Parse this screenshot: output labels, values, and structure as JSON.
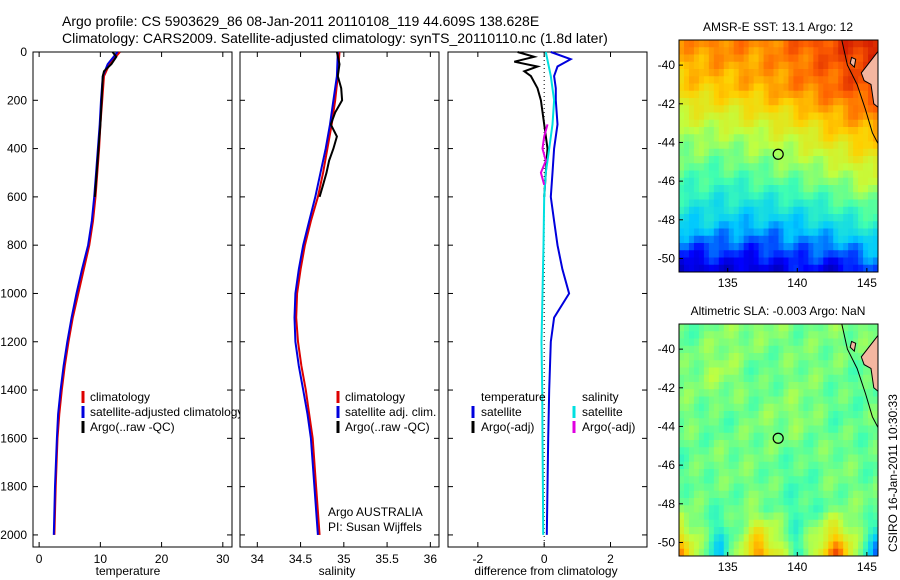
{
  "titles": {
    "line1": "Argo profile: CS 5903629_86 08-Jan-2011 20110108_119 44.609S 138.628E",
    "line2": "Climatology: CARS2009. Satellite-adjusted climatology: synTS_20110110.nc (1.8d later)"
  },
  "stamp": "CSIRO 16-Jan-2011 10:30:33",
  "colors": {
    "climatology": "#dd0000",
    "satellite": "#0000dd",
    "argo": "#000000",
    "satellite_sal": "#00e0e0",
    "argo_sal": "#e000e0"
  },
  "chart_data": [
    {
      "type": "line",
      "name": "temperature-profile",
      "xlabel": "temperature",
      "ylabel": "",
      "xlim": [
        -1,
        31.5
      ],
      "ylim": [
        2050,
        0
      ],
      "xticks": [
        0,
        10,
        20,
        30
      ],
      "xtick_labels": [
        "0",
        "10",
        "20",
        "30"
      ],
      "yticks": [
        0,
        200,
        400,
        600,
        800,
        1000,
        1200,
        1400,
        1600,
        1800,
        2000
      ],
      "ytick_labels": [
        "0",
        "200",
        "400",
        "600",
        "800",
        "1000",
        "1200",
        "1400",
        "1600",
        "1800",
        "2000"
      ],
      "legend": [
        "climatology",
        "satellite-adjusted climatology",
        "Argo(..raw -QC)"
      ],
      "series": [
        {
          "name": "climatology",
          "color": "#dd0000",
          "depth": [
            0,
            50,
            100,
            200,
            300,
            400,
            500,
            600,
            700,
            800,
            900,
            1000,
            1100,
            1200,
            1300,
            1400,
            1500,
            1600,
            1800,
            2000
          ],
          "values": [
            13.2,
            11.5,
            10.6,
            10.3,
            10.0,
            9.8,
            9.5,
            9.2,
            8.8,
            8.2,
            7.3,
            6.4,
            5.5,
            4.8,
            4.2,
            3.7,
            3.3,
            3.0,
            2.7,
            2.5
          ]
        },
        {
          "name": "satellite-adjusted climatology",
          "color": "#0000dd",
          "depth": [
            0,
            50,
            100,
            200,
            300,
            400,
            500,
            600,
            700,
            800,
            900,
            1000,
            1100,
            1200,
            1300,
            1400,
            1500,
            1600,
            1800,
            2000
          ],
          "values": [
            12.8,
            11.2,
            10.4,
            10.1,
            9.9,
            9.6,
            9.3,
            9.0,
            8.6,
            8.0,
            7.0,
            6.1,
            5.3,
            4.6,
            4.0,
            3.5,
            3.1,
            2.9,
            2.6,
            2.4
          ]
        },
        {
          "name": "Argo(..raw -QC)",
          "color": "#000000",
          "depth": [
            0,
            20,
            50,
            80,
            100,
            150,
            200,
            300,
            400,
            500,
            600
          ],
          "values": [
            12.0,
            12.6,
            11.8,
            10.6,
            10.4,
            10.3,
            10.2,
            10.0,
            9.7,
            9.4,
            9.1
          ]
        }
      ]
    },
    {
      "type": "line",
      "name": "salinity-profile",
      "xlabel": "salinity",
      "ylabel": "",
      "xlim": [
        33.8,
        36.1
      ],
      "ylim": [
        2050,
        0
      ],
      "xticks": [
        34,
        34.5,
        35,
        35.5,
        36
      ],
      "xtick_labels": [
        "34",
        "34.5",
        "35",
        "35.5",
        "36"
      ],
      "legend": [
        "climatology",
        "satellite adj. clim.",
        "Argo(..raw -QC)"
      ],
      "annotation": [
        "Argo AUSTRALIA",
        "PI: Susan Wijffels"
      ],
      "series": [
        {
          "name": "climatology",
          "color": "#dd0000",
          "depth": [
            0,
            100,
            200,
            300,
            400,
            500,
            600,
            700,
            800,
            900,
            1000,
            1100,
            1200,
            1300,
            1400,
            1500,
            1600,
            1800,
            2000
          ],
          "values": [
            34.95,
            34.93,
            34.9,
            34.86,
            34.81,
            34.76,
            34.7,
            34.62,
            34.55,
            34.5,
            34.46,
            34.45,
            34.47,
            34.51,
            34.56,
            34.6,
            34.64,
            34.68,
            34.72
          ]
        },
        {
          "name": "satellite adj. clim.",
          "color": "#0000dd",
          "depth": [
            0,
            100,
            200,
            300,
            400,
            500,
            600,
            700,
            800,
            900,
            1000,
            1100,
            1200,
            1300,
            1400,
            1500,
            1600,
            1800,
            2000
          ],
          "values": [
            34.93,
            34.92,
            34.88,
            34.84,
            34.79,
            34.73,
            34.67,
            34.6,
            34.53,
            34.48,
            34.44,
            34.43,
            34.44,
            34.48,
            34.53,
            34.58,
            34.62,
            34.66,
            34.7
          ]
        },
        {
          "name": "Argo(..raw -QC)",
          "color": "#000000",
          "depth": [
            0,
            50,
            100,
            150,
            200,
            250,
            300,
            350,
            400,
            450,
            500,
            550,
            600
          ],
          "values": [
            34.92,
            34.95,
            34.93,
            34.97,
            34.98,
            34.9,
            34.85,
            34.92,
            34.88,
            34.83,
            34.8,
            34.76,
            34.72
          ]
        }
      ]
    },
    {
      "type": "line",
      "name": "difference-profile",
      "xlabel": "difference from climatology",
      "ylabel": "",
      "xlim": [
        -2.9,
        3.1
      ],
      "ylim": [
        2050,
        0
      ],
      "xticks": [
        -2,
        0,
        2
      ],
      "xtick_labels": [
        "-2",
        "0",
        "2"
      ],
      "legend_headers": [
        "temperature",
        "salinity"
      ],
      "legend": [
        "satellite",
        "Argo(-adj)",
        "satellite",
        "Argo(-adj)"
      ],
      "series": [
        {
          "name": "temperature satellite",
          "color": "#0000dd",
          "depth": [
            0,
            30,
            60,
            100,
            150,
            200,
            300,
            400,
            500,
            600,
            700,
            800,
            900,
            1000,
            1100,
            1200,
            1400,
            1600,
            1800,
            2000
          ],
          "values": [
            0.2,
            0.8,
            0.4,
            0.3,
            0.35,
            0.35,
            0.4,
            0.3,
            0.25,
            0.2,
            0.3,
            0.4,
            0.55,
            0.75,
            0.3,
            0.2,
            0.15,
            0.12,
            0.1,
            0.08
          ]
        },
        {
          "name": "temperature Argo(-adj)",
          "color": "#000000",
          "depth": [
            0,
            20,
            40,
            60,
            80,
            100,
            150,
            200,
            300,
            400,
            500,
            600
          ],
          "values": [
            -0.8,
            -0.3,
            -0.9,
            -0.2,
            -0.6,
            -0.4,
            -0.2,
            -0.1,
            0.0,
            0.1,
            0.05,
            0.0
          ]
        },
        {
          "name": "salinity satellite",
          "color": "#00e0e0",
          "depth": [
            0,
            100,
            200,
            300,
            400,
            500,
            600,
            800,
            1000,
            1200,
            1400,
            1600,
            1800,
            2000
          ],
          "values": [
            0.05,
            0.2,
            0.3,
            0.25,
            0.15,
            0.05,
            0.0,
            -0.02,
            -0.05,
            -0.08,
            -0.06,
            -0.05,
            -0.04,
            -0.03
          ]
        },
        {
          "name": "salinity Argo(-adj)",
          "color": "#e000e0",
          "depth": [
            300,
            350,
            400,
            450,
            500,
            550
          ],
          "values": [
            0.1,
            0.0,
            -0.05,
            0.05,
            -0.1,
            0.0
          ]
        }
      ]
    },
    {
      "type": "heatmap",
      "name": "sst-map",
      "title": "AMSR-E SST: 13.1 Argo: 12",
      "xlim": [
        131.5,
        145.8
      ],
      "ylim": [
        -50.7,
        -38.7
      ],
      "xticks": [
        135,
        140,
        145
      ],
      "xtick_labels": [
        "135",
        "140",
        "145"
      ],
      "yticks": [
        -40,
        -42,
        -44,
        -46,
        -48,
        -50
      ],
      "ytick_labels": [
        "-40",
        "-42",
        "-44",
        "-46",
        "-48",
        "-50"
      ],
      "float_position": {
        "lon": 138.628,
        "lat": -44.609
      },
      "color_scale": [
        "#000080",
        "#0000ff",
        "#00c8ff",
        "#40ffb0",
        "#c0ff40",
        "#ffd000",
        "#ff6000",
        "#c00000"
      ],
      "rows_lat": [
        -39,
        -41,
        -43,
        -45,
        -47,
        -49.5
      ],
      "values": [
        [
          0.78,
          0.82,
          0.8,
          0.85,
          0.9,
          0.95
        ],
        [
          0.7,
          0.72,
          0.75,
          0.8,
          0.85,
          0.9
        ],
        [
          0.55,
          0.55,
          0.58,
          0.62,
          0.7,
          0.75
        ],
        [
          0.45,
          0.42,
          0.45,
          0.48,
          0.52,
          0.6
        ],
        [
          0.32,
          0.3,
          0.28,
          0.3,
          0.35,
          0.4
        ],
        [
          0.08,
          0.12,
          0.1,
          0.15,
          0.12,
          0.2
        ]
      ]
    },
    {
      "type": "heatmap",
      "name": "sla-map",
      "title": "Altimetric SLA: -0.003 Argo: NaN",
      "xlim": [
        131.5,
        145.8
      ],
      "ylim": [
        -50.7,
        -38.7
      ],
      "xticks": [
        135,
        140,
        145
      ],
      "xtick_labels": [
        "135",
        "140",
        "145"
      ],
      "yticks": [
        -40,
        -42,
        -44,
        -46,
        -48,
        -50
      ],
      "ytick_labels": [
        "-40",
        "-42",
        "-44",
        "-46",
        "-48",
        "-50"
      ],
      "float_position": {
        "lon": 138.628,
        "lat": -44.609
      },
      "color_scale": [
        "#000080",
        "#0000ff",
        "#00c8ff",
        "#40ffb0",
        "#c0ff40",
        "#ffd000",
        "#ff6000",
        "#c00000"
      ],
      "rows_lat": [
        -39,
        -41,
        -43,
        -45,
        -47,
        -49.5
      ],
      "values": [
        [
          0.45,
          0.5,
          0.52,
          0.48,
          0.5,
          0.5
        ],
        [
          0.48,
          0.55,
          0.45,
          0.5,
          0.48,
          0.45
        ],
        [
          0.5,
          0.45,
          0.5,
          0.52,
          0.45,
          0.48
        ],
        [
          0.45,
          0.5,
          0.48,
          0.45,
          0.5,
          0.45
        ],
        [
          0.5,
          0.45,
          0.5,
          0.42,
          0.48,
          0.5
        ],
        [
          0.75,
          0.3,
          0.8,
          0.4,
          0.85,
          0.25
        ]
      ]
    }
  ]
}
